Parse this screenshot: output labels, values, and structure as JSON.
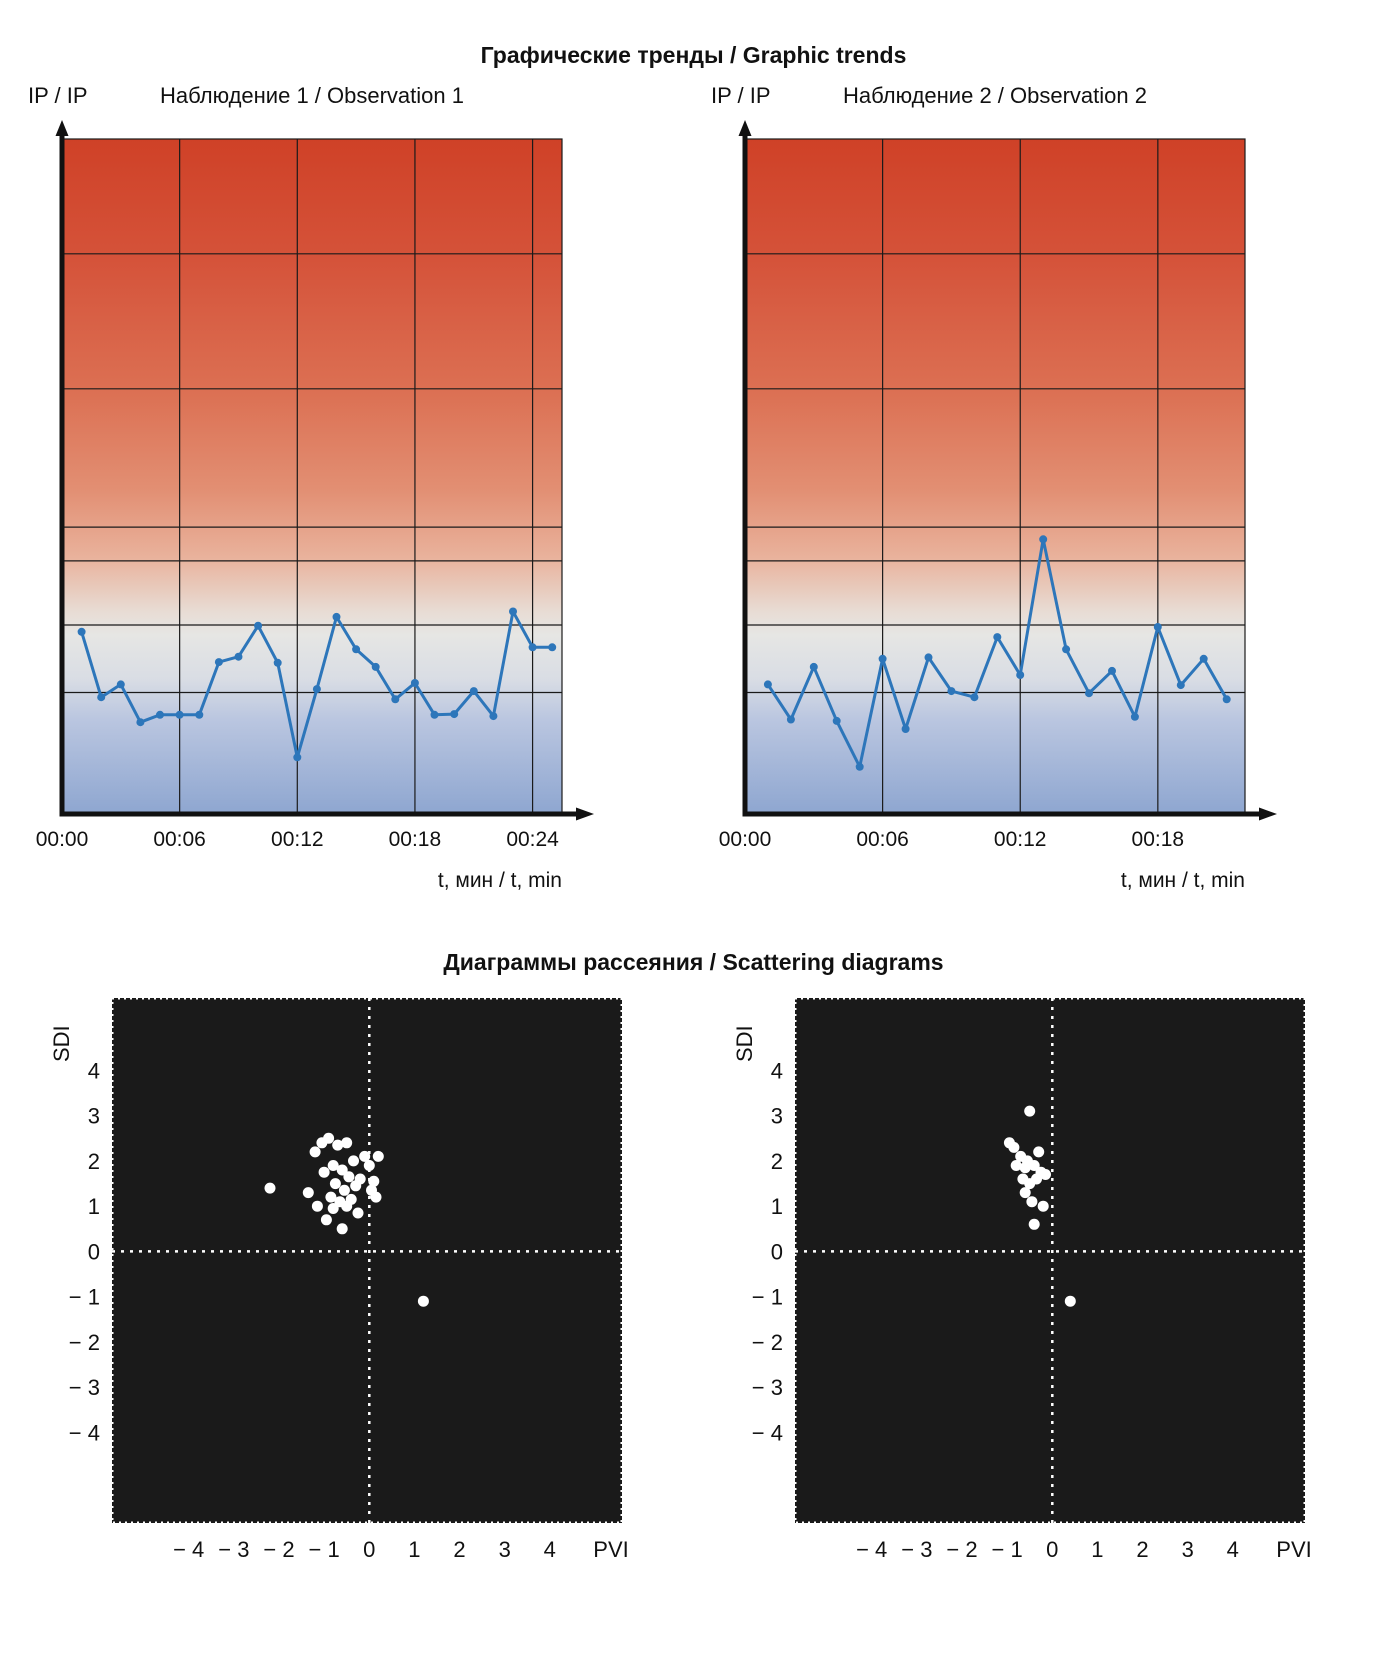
{
  "page": {
    "trends_title": "Графические тренды / Graphic trends",
    "scatter_title": "Диаграммы рассеяния / Scattering diagrams"
  },
  "chart_data": [
    {
      "type": "line",
      "title": "Наблюдение 1 / Observation 1",
      "ylabel": "IP / IP",
      "xlabel": "t, мин / t, min",
      "x_tick_minutes": [
        0,
        6,
        12,
        18,
        24
      ],
      "x_tick_labels": [
        "00:00",
        "00:06",
        "00:12",
        "00:18",
        "00:24"
      ],
      "x_max_minutes": 25.5,
      "y_range": [
        0,
        100
      ],
      "hgrid_values": [
        83,
        63,
        42.5,
        37.5,
        28,
        18
      ],
      "line_color": "#2d76ba",
      "grid_color": "#1a1a1a",
      "bg_gradient": [
        [
          0,
          "#cf4127"
        ],
        [
          0.18,
          "#d5533a"
        ],
        [
          0.38,
          "#dc7154"
        ],
        [
          0.52,
          "#e28f73"
        ],
        [
          0.62,
          "#e9b29c"
        ],
        [
          0.7,
          "#e8dcd4"
        ],
        [
          0.735,
          "#e6e6e4"
        ],
        [
          0.8,
          "#d9dde4"
        ],
        [
          0.86,
          "#bac6e0"
        ],
        [
          1,
          "#8ea6d0"
        ]
      ],
      "x_minutes": [
        1,
        2,
        3,
        4,
        5,
        6,
        7,
        8,
        9,
        10,
        11,
        12,
        13,
        14,
        15,
        16,
        17,
        18,
        19,
        20,
        21,
        22,
        23,
        24,
        25
      ],
      "values": [
        27,
        17.3,
        19.2,
        13.6,
        14.7,
        14.7,
        14.7,
        22.5,
        23.3,
        27.9,
        22.4,
        8.4,
        18.5,
        29.2,
        24.4,
        21.8,
        17.0,
        19.4,
        14.7,
        14.8,
        18.2,
        14.5,
        30.0,
        24.7,
        24.7
      ]
    },
    {
      "type": "line",
      "title": "Наблюдение 2 / Observation 2",
      "ylabel": "IP / IP",
      "xlabel": "t, мин / t, min",
      "x_tick_minutes": [
        0,
        6,
        12,
        18
      ],
      "x_tick_labels": [
        "00:00",
        "00:06",
        "00:12",
        "00:18"
      ],
      "x_max_minutes": 21.8,
      "y_range": [
        0,
        100
      ],
      "hgrid_values": [
        83,
        63,
        42.5,
        37.5,
        28,
        18
      ],
      "line_color": "#2d76ba",
      "grid_color": "#1a1a1a",
      "bg_gradient": [
        [
          0,
          "#cf4127"
        ],
        [
          0.18,
          "#d5533a"
        ],
        [
          0.38,
          "#dc7154"
        ],
        [
          0.52,
          "#e28f73"
        ],
        [
          0.62,
          "#e9b29c"
        ],
        [
          0.7,
          "#e8dcd4"
        ],
        [
          0.735,
          "#e6e6e4"
        ],
        [
          0.8,
          "#d9dde4"
        ],
        [
          0.86,
          "#bac6e0"
        ],
        [
          1,
          "#8ea6d0"
        ]
      ],
      "x_minutes": [
        1,
        2,
        3,
        4,
        5,
        6,
        7,
        8,
        9,
        10,
        11,
        12,
        13,
        14,
        15,
        16,
        17,
        18,
        19,
        20,
        21
      ],
      "values": [
        19.2,
        14.0,
        21.8,
        13.8,
        7.0,
        23.0,
        12.6,
        23.2,
        18.2,
        17.3,
        26.2,
        20.6,
        40.7,
        24.4,
        17.9,
        21.2,
        14.4,
        27.7,
        19.1,
        23.0,
        17.0
      ]
    },
    {
      "type": "scatter",
      "ylabel": "SDI",
      "xlabel": "PVI",
      "xlim": [
        -5.7,
        5.6
      ],
      "ylim": [
        -6.0,
        5.6
      ],
      "x_tick_values": [
        -4,
        -3,
        -2,
        -1,
        0,
        1,
        2,
        3,
        4
      ],
      "x_tick_labels": [
        "− 4",
        "− 3",
        "− 2",
        "− 1",
        "0",
        "1",
        "2",
        "3",
        "4"
      ],
      "y_tick_values": [
        4,
        3,
        2,
        1,
        0,
        -1,
        -2,
        -3,
        -4
      ],
      "y_tick_labels": [
        "4",
        "3",
        "2",
        "1",
        "0",
        "− 1",
        "− 2",
        "− 3",
        "− 4"
      ],
      "bg_color": "#1a1a1a",
      "dot_color": "#ffffff",
      "points": [
        [
          -2.2,
          1.4
        ],
        [
          -1.35,
          1.3
        ],
        [
          -1.2,
          2.2
        ],
        [
          -1.15,
          1.0
        ],
        [
          -1.05,
          2.4
        ],
        [
          -1.0,
          1.75
        ],
        [
          -0.95,
          0.7
        ],
        [
          -0.9,
          2.5
        ],
        [
          -0.85,
          1.2
        ],
        [
          -0.8,
          1.9
        ],
        [
          -0.8,
          0.95
        ],
        [
          -0.75,
          1.5
        ],
        [
          -0.7,
          2.35
        ],
        [
          -0.65,
          1.1
        ],
        [
          -0.6,
          0.5
        ],
        [
          -0.6,
          1.8
        ],
        [
          -0.55,
          1.35
        ],
        [
          -0.5,
          2.4
        ],
        [
          -0.5,
          1.0
        ],
        [
          -0.45,
          1.65
        ],
        [
          -0.4,
          1.15
        ],
        [
          -0.35,
          2.0
        ],
        [
          -0.3,
          1.45
        ],
        [
          -0.25,
          0.85
        ],
        [
          -0.2,
          1.6
        ],
        [
          -0.1,
          2.1
        ],
        [
          0.0,
          1.9
        ],
        [
          0.05,
          1.35
        ],
        [
          0.1,
          1.55
        ],
        [
          0.2,
          2.1
        ],
        [
          0.15,
          1.2
        ],
        [
          1.2,
          -1.1
        ]
      ]
    },
    {
      "type": "scatter",
      "ylabel": "SDI",
      "xlabel": "PVI",
      "xlim": [
        -5.7,
        5.6
      ],
      "ylim": [
        -6.0,
        5.6
      ],
      "x_tick_values": [
        -4,
        -3,
        -2,
        -1,
        0,
        1,
        2,
        3,
        4
      ],
      "x_tick_labels": [
        "− 4",
        "− 3",
        "− 2",
        "− 1",
        "0",
        "1",
        "2",
        "3",
        "4"
      ],
      "y_tick_values": [
        4,
        3,
        2,
        1,
        0,
        -1,
        -2,
        -3,
        -4
      ],
      "y_tick_labels": [
        "4",
        "3",
        "2",
        "1",
        "0",
        "− 1",
        "− 2",
        "− 3",
        "− 4"
      ],
      "bg_color": "#1a1a1a",
      "dot_color": "#ffffff",
      "points": [
        [
          -0.95,
          2.4
        ],
        [
          -0.85,
          2.3
        ],
        [
          -0.8,
          1.9
        ],
        [
          -0.7,
          2.1
        ],
        [
          -0.65,
          1.6
        ],
        [
          -0.6,
          1.85
        ],
        [
          -0.6,
          1.3
        ],
        [
          -0.55,
          2.0
        ],
        [
          -0.5,
          3.1
        ],
        [
          -0.5,
          1.5
        ],
        [
          -0.45,
          1.1
        ],
        [
          -0.4,
          1.9
        ],
        [
          -0.4,
          0.6
        ],
        [
          -0.35,
          1.6
        ],
        [
          -0.3,
          2.2
        ],
        [
          -0.25,
          1.75
        ],
        [
          -0.2,
          1.0
        ],
        [
          -0.15,
          1.7
        ],
        [
          0.4,
          -1.1
        ]
      ]
    }
  ]
}
